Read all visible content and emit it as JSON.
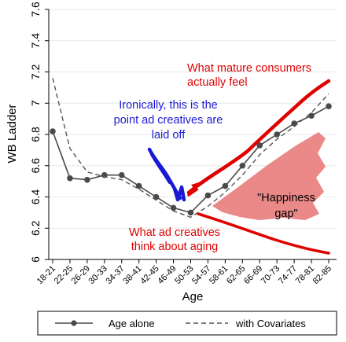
{
  "chart_data": {
    "type": "line",
    "xlabel": "Age",
    "ylabel": "WB Ladder",
    "ylim": [
      6,
      7.6
    ],
    "yticks": [
      "6",
      "6.2",
      "6.4",
      "6.6",
      "6.8",
      "7",
      "7.2",
      "7.4",
      "7.6"
    ],
    "categories": [
      "18-21",
      "22-25",
      "26-29",
      "30-33",
      "34-37",
      "38-41",
      "42-45",
      "46-49",
      "50-53",
      "54-57",
      "58-61",
      "62-65",
      "66-69",
      "70-73",
      "74-77",
      "78-81",
      "82-85"
    ],
    "series": [
      {
        "name": "Age alone",
        "style": "solid-markers",
        "color": "#4a4a4a",
        "values": [
          6.82,
          6.52,
          6.51,
          6.54,
          6.54,
          6.47,
          6.4,
          6.33,
          6.3,
          6.41,
          6.47,
          6.6,
          6.73,
          6.8,
          6.87,
          6.92,
          6.98
        ]
      },
      {
        "name": "with Covariates",
        "style": "dashed",
        "color": "#555555",
        "values": [
          7.16,
          6.71,
          6.56,
          6.53,
          6.51,
          6.45,
          6.38,
          6.31,
          6.27,
          6.34,
          6.43,
          6.54,
          6.67,
          6.77,
          6.85,
          6.94,
          7.06
        ]
      }
    ],
    "legend": {
      "placement": "bottom",
      "entries": [
        {
          "label": "Age alone",
          "style": "solid-markers"
        },
        {
          "label": "with Covariates",
          "style": "dashed"
        }
      ]
    },
    "grid": true,
    "annotations": [
      {
        "id": "blue",
        "lines": [
          "Ironically, this is the",
          "point ad creatives are",
          "laid off"
        ],
        "color": "#1a1ad6"
      },
      {
        "id": "red-top",
        "lines": [
          "What mature consumers",
          "actually feel"
        ],
        "color": "#e00000"
      },
      {
        "id": "gap",
        "lines": [
          "\"Happiness",
          "gap\""
        ],
        "color": "#000000"
      },
      {
        "id": "red-bottom",
        "lines": [
          "What ad creatives",
          "think about aging"
        ],
        "color": "#e00000"
      }
    ],
    "colors": {
      "marker_line": "#4a4a4a",
      "dashed": "#555555",
      "blue_ink": "#1a1ad6",
      "red_ink": "#e00000",
      "gap_fill": "#e87878",
      "grid": "#e8e8e8"
    }
  }
}
